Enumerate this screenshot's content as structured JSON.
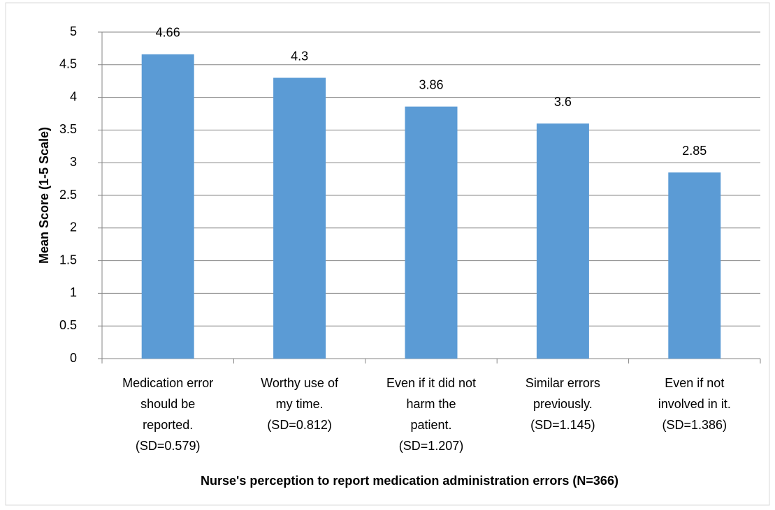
{
  "chart_data": {
    "type": "bar",
    "y_label": "Mean Score (1-5 Scale)",
    "x_label": "Nurse's perception to report medication administration errors (N=366)",
    "categories": [
      [
        "Medication error",
        "should be",
        "reported.",
        "(SD=0.579)"
      ],
      [
        "Worthy use of",
        "my time.",
        "(SD=0.812)"
      ],
      [
        "Even if it did not",
        "harm the",
        "patient.",
        "(SD=1.207)"
      ],
      [
        "Similar errors",
        "previously.",
        "(SD=1.145)"
      ],
      [
        "Even if not",
        "involved in it.",
        "(SD=1.386)"
      ]
    ],
    "values": [
      4.66,
      4.3,
      3.86,
      3.6,
      2.85
    ],
    "color": "#5b9bd5",
    "ylim": [
      0,
      5
    ],
    "yticks": [
      0,
      0.5,
      1,
      1.5,
      2,
      2.5,
      3,
      3.5,
      4,
      4.5,
      5
    ],
    "grid": true
  }
}
